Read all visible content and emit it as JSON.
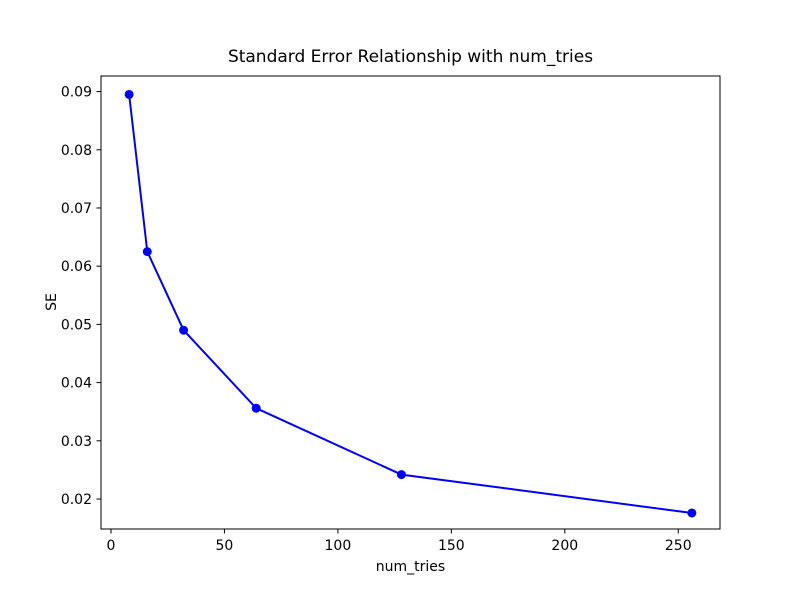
{
  "figure": {
    "background_color": "#ffffff"
  },
  "chart_data": {
    "type": "line",
    "title": "Standard Error Relationship with num_tries",
    "xlabel": "num_tries",
    "ylabel": "SE",
    "series": [
      {
        "name": "SE",
        "x": [
          8,
          16,
          32,
          64,
          128,
          256
        ],
        "y": [
          0.0895,
          0.0625,
          0.049,
          0.0356,
          0.0242,
          0.0176
        ],
        "color": "#0000ff",
        "marker": "circle",
        "marker_radius": 4.5,
        "line_width": 2
      }
    ],
    "x_ticks": [
      0,
      50,
      100,
      150,
      200,
      250
    ],
    "y_ticks": [
      0.02,
      0.03,
      0.04,
      0.05,
      0.06,
      0.07,
      0.08,
      0.09
    ],
    "y_tick_decimals": 2,
    "xlim": [
      -4.4,
      268.4
    ],
    "ylim": [
      0.01485,
      0.09267
    ],
    "grid": false,
    "legend_position": "none",
    "axis_color": "#000000",
    "text_color": "#000000"
  }
}
